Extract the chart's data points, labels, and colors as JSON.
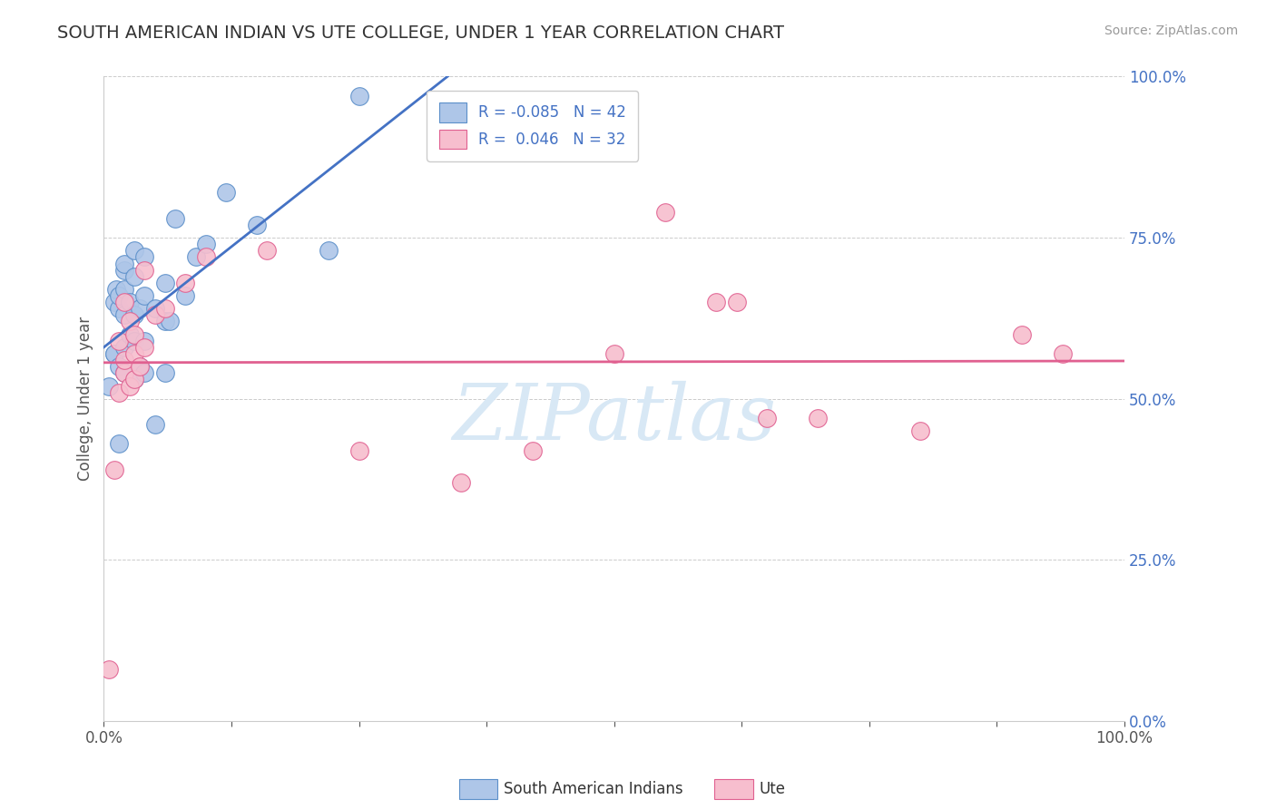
{
  "title": "SOUTH AMERICAN INDIAN VS UTE COLLEGE, UNDER 1 YEAR CORRELATION CHART",
  "source": "Source: ZipAtlas.com",
  "ylabel": "College, Under 1 year",
  "xlim": [
    0.0,
    1.0
  ],
  "ylim": [
    0.0,
    1.0
  ],
  "yticks": [
    1.0,
    0.75,
    0.5,
    0.25,
    0.0
  ],
  "ytick_labels_right": [
    "100.0%",
    "75.0%",
    "50.0%",
    "25.0%",
    "0.0%"
  ],
  "blue_fill": "#aec6e8",
  "blue_edge": "#5b8fc9",
  "pink_fill": "#f7bece",
  "pink_edge": "#e06090",
  "blue_line": "#4472c4",
  "pink_line": "#e06090",
  "legend_text_color": "#4472c4",
  "right_axis_color": "#4472c4",
  "grid_color": "#cccccc",
  "watermark": "ZIPatlas",
  "watermark_color": "#d8e8f5",
  "background": "#ffffff",
  "legend_r_blue": "-0.085",
  "legend_n_blue": "42",
  "legend_r_pink": "0.046",
  "legend_n_pink": "32",
  "legend_label_blue": "South American Indians",
  "legend_label_pink": "Ute",
  "blue_x": [
    0.005,
    0.01,
    0.01,
    0.01,
    0.012,
    0.015,
    0.015,
    0.015,
    0.015,
    0.02,
    0.02,
    0.02,
    0.02,
    0.02,
    0.02,
    0.025,
    0.025,
    0.03,
    0.03,
    0.03,
    0.03,
    0.03,
    0.035,
    0.035,
    0.04,
    0.04,
    0.04,
    0.04,
    0.05,
    0.05,
    0.06,
    0.06,
    0.06,
    0.065,
    0.07,
    0.08,
    0.09,
    0.1,
    0.12,
    0.15,
    0.22,
    0.25
  ],
  "blue_y": [
    0.52,
    0.57,
    0.57,
    0.65,
    0.67,
    0.43,
    0.55,
    0.64,
    0.66,
    0.54,
    0.58,
    0.63,
    0.67,
    0.7,
    0.71,
    0.6,
    0.65,
    0.53,
    0.59,
    0.63,
    0.69,
    0.73,
    0.55,
    0.64,
    0.54,
    0.59,
    0.66,
    0.72,
    0.46,
    0.64,
    0.54,
    0.62,
    0.68,
    0.62,
    0.78,
    0.66,
    0.72,
    0.74,
    0.82,
    0.77,
    0.73,
    0.97
  ],
  "pink_x": [
    0.005,
    0.01,
    0.015,
    0.015,
    0.02,
    0.02,
    0.02,
    0.025,
    0.025,
    0.03,
    0.03,
    0.03,
    0.035,
    0.04,
    0.04,
    0.05,
    0.06,
    0.08,
    0.1,
    0.16,
    0.25,
    0.35,
    0.42,
    0.5,
    0.55,
    0.6,
    0.62,
    0.65,
    0.7,
    0.8,
    0.9,
    0.94
  ],
  "pink_y": [
    0.08,
    0.39,
    0.51,
    0.59,
    0.54,
    0.56,
    0.65,
    0.52,
    0.62,
    0.53,
    0.57,
    0.6,
    0.55,
    0.58,
    0.7,
    0.63,
    0.64,
    0.68,
    0.72,
    0.73,
    0.42,
    0.37,
    0.42,
    0.57,
    0.79,
    0.65,
    0.65,
    0.47,
    0.47,
    0.45,
    0.6,
    0.57
  ]
}
